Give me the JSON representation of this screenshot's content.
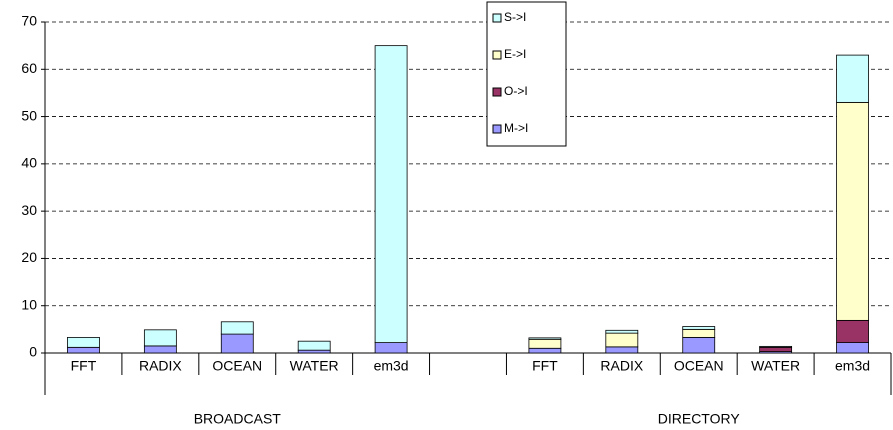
{
  "chart_data": {
    "type": "stacked-bar",
    "categories": [
      "FFT",
      "RADIX",
      "OCEAN",
      "WATER",
      "em3d",
      null,
      "FFT",
      "RADIX",
      "OCEAN",
      "WATER",
      "em3d"
    ],
    "groups": [
      "BROADCAST",
      "DIRECTORY"
    ],
    "series": [
      {
        "name": "M->I",
        "color": "#9999ff",
        "values": [
          1.2,
          1.5,
          4.0,
          0.6,
          2.2,
          null,
          1.0,
          1.3,
          3.3,
          0.3,
          2.2
        ]
      },
      {
        "name": "O->I",
        "color": "#993366",
        "values": [
          0,
          0,
          0,
          0,
          0,
          null,
          0,
          0,
          0,
          0.9,
          4.7
        ]
      },
      {
        "name": "E->I",
        "color": "#ffffcc",
        "values": [
          0,
          0,
          0,
          0,
          0,
          null,
          1.9,
          2.9,
          1.7,
          0,
          46.1
        ]
      },
      {
        "name": "S->I",
        "color": "#ccffff",
        "values": [
          2.1,
          3.4,
          2.6,
          1.9,
          62.8,
          null,
          0.3,
          0.6,
          0.6,
          0.2,
          10
        ]
      }
    ],
    "ylim": [
      0,
      70
    ],
    "yticks": [
      0,
      10,
      20,
      30,
      40,
      50,
      60,
      70
    ],
    "grid": true
  }
}
